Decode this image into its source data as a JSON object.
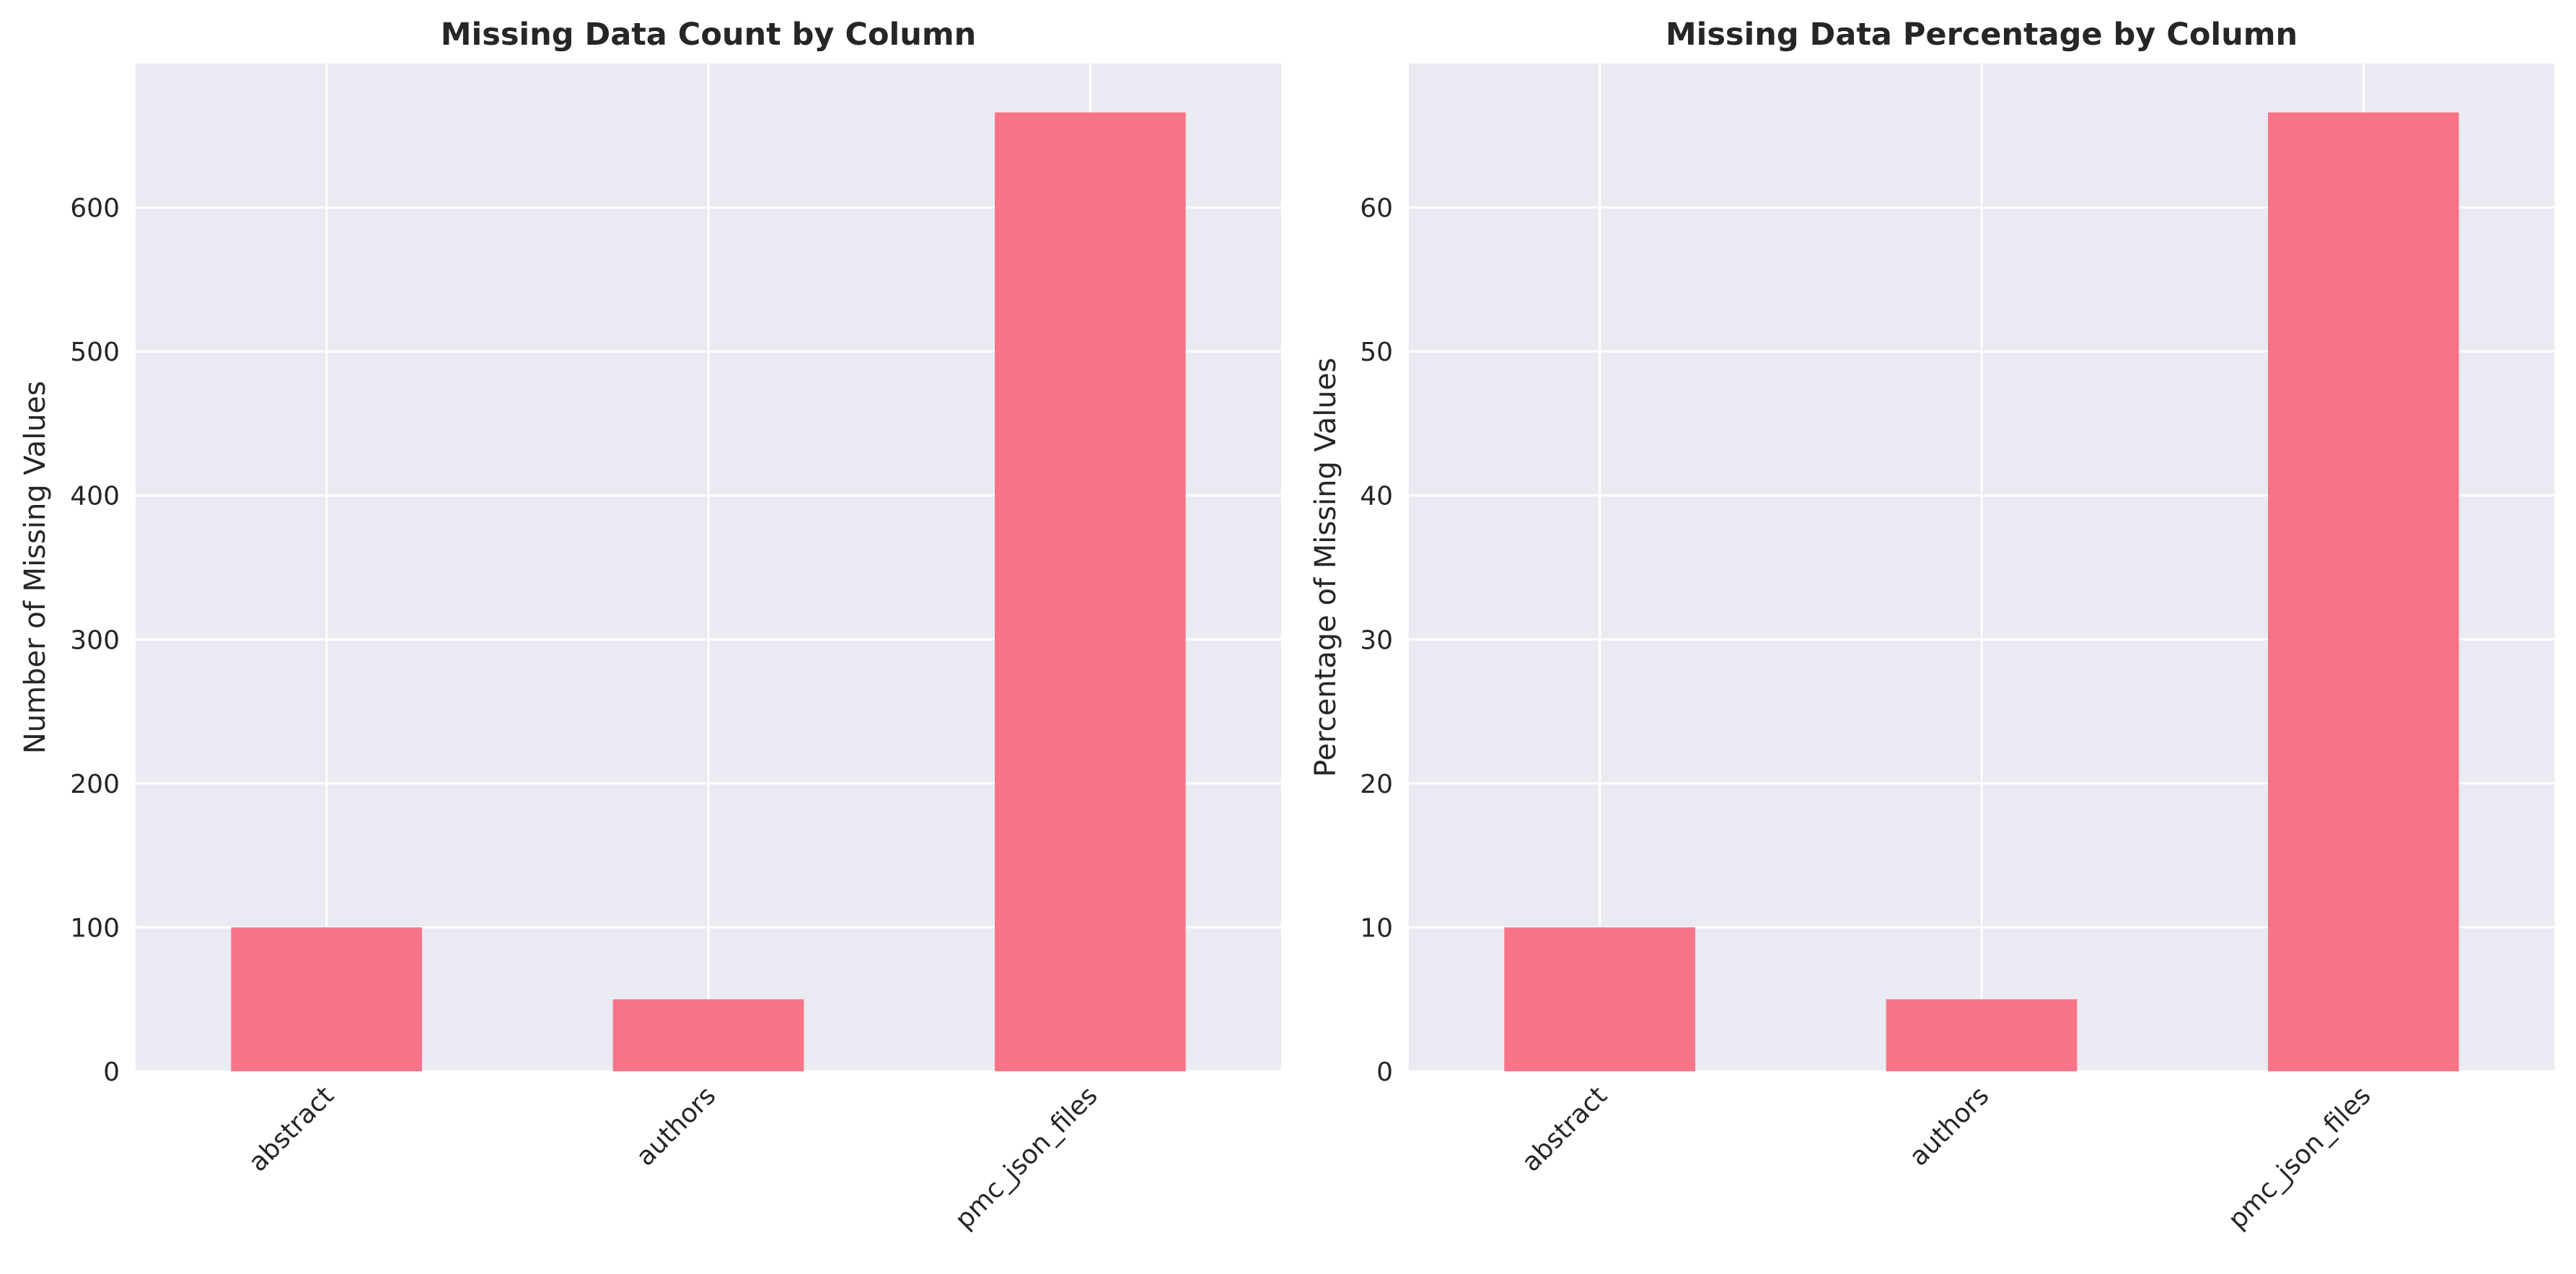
{
  "chart_data": [
    {
      "type": "bar",
      "title": "Missing Data Count by Column",
      "xlabel": "",
      "ylabel": "Number of Missing Values",
      "categories": [
        "abstract",
        "authors",
        "pmc_json_files"
      ],
      "values": [
        100,
        50,
        666
      ],
      "ylim": [
        0,
        700
      ],
      "yticks": [
        0,
        100,
        200,
        300,
        400,
        500,
        600
      ],
      "bar_color": "#f77489",
      "background_color": "#eaeaf2",
      "grid": true,
      "legend": false
    },
    {
      "type": "bar",
      "title": "Missing Data Percentage by Column",
      "xlabel": "",
      "ylabel": "Percentage of Missing Values",
      "categories": [
        "abstract",
        "authors",
        "pmc_json_files"
      ],
      "values": [
        10,
        5,
        66.6
      ],
      "ylim": [
        0,
        70
      ],
      "yticks": [
        0,
        10,
        20,
        30,
        40,
        50,
        60
      ],
      "bar_color": "#f77489",
      "background_color": "#eaeaf2",
      "grid": true,
      "legend": false
    }
  ]
}
